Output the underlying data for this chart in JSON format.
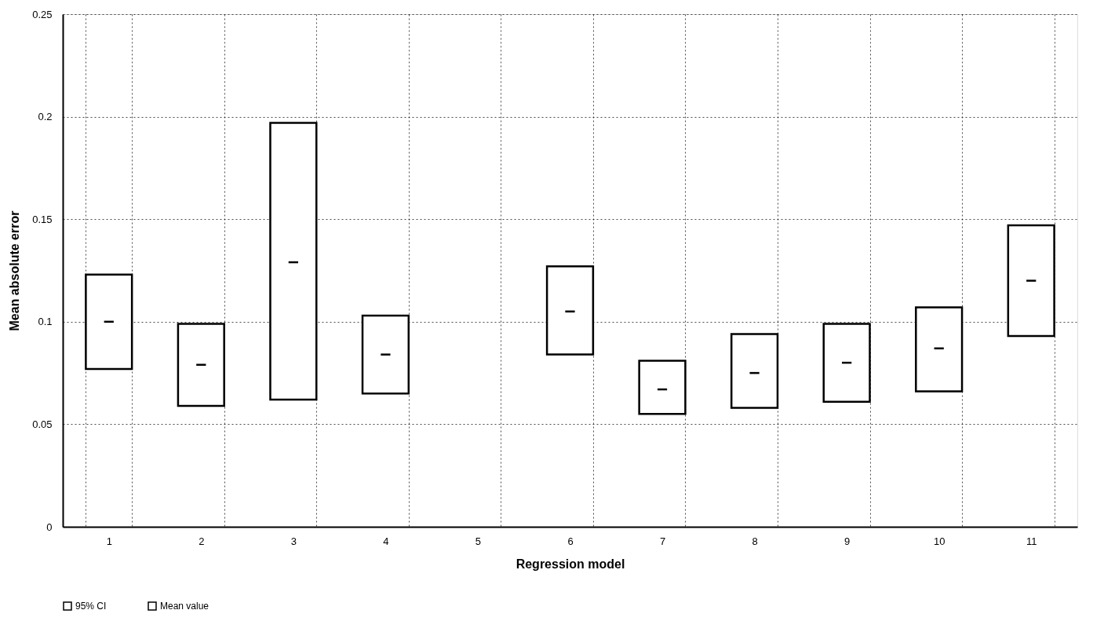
{
  "chart_data": {
    "type": "bar",
    "xlabel": "Regression model",
    "ylabel": "Mean absolute error",
    "categories": [
      "1",
      "2",
      "3",
      "4",
      "5",
      "6",
      "7",
      "8",
      "9",
      "10",
      "11"
    ],
    "series": [
      {
        "name": "95% CI",
        "type": "bar",
        "color": "#000000",
        "base": [
          0.077,
          0.059,
          0.062,
          0.065,
          null,
          0.084,
          0.055,
          0.058,
          0.061,
          0.066,
          0.093
        ],
        "values": [
          0.046,
          0.04,
          0.135,
          0.038,
          null,
          0.043,
          0.026,
          0.036,
          0.038,
          0.041,
          0.054
        ]
      },
      {
        "name": "Mean value",
        "type": "scatter",
        "color": "#000000",
        "x": [
          "1",
          "2",
          "3",
          "4",
          "5",
          "6",
          "7",
          "8",
          "9",
          "10",
          "11"
        ],
        "values": [
          0.1,
          0.079,
          0.129,
          0.084,
          null,
          0.105,
          0.067,
          0.075,
          0.08,
          0.087,
          0.12
        ]
      }
    ],
    "ylim": [
      0,
      0.25
    ],
    "yticks": [
      {
        "value": 0,
        "label": "0"
      },
      0.05,
      {
        "value": 0.1,
        "label": "0.1"
      },
      0.15,
      {
        "value": 0.2,
        "label": "0.2"
      },
      0.25
    ],
    "grid": true,
    "legend": "bottom"
  }
}
